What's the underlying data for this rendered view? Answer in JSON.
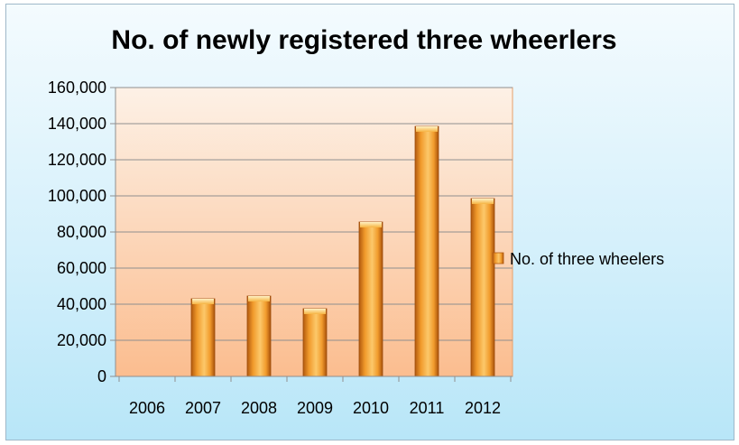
{
  "chart_data": {
    "type": "bar",
    "title": "No. of newly registered three wheerlers",
    "categories": [
      "2006",
      "2007",
      "2008",
      "2009",
      "2010",
      "2011",
      "2012"
    ],
    "series": [
      {
        "name": "No. of three wheelers",
        "values": [
          0,
          43000,
          44500,
          37500,
          85500,
          138500,
          98500
        ]
      }
    ],
    "ylim": [
      0,
      160000
    ],
    "yticks": [
      "0",
      "20,000",
      "40,000",
      "60,000",
      "80,000",
      "100,000",
      "120,000",
      "140,000",
      "160,000"
    ],
    "grid": true,
    "legend_position": "right",
    "colors": {
      "bar_light": "#fcc86a",
      "bar_mid": "#f19b2c",
      "bar_dark": "#b35a0e",
      "plot_top": "#fdeee2",
      "plot_bottom": "#fbbf93",
      "frame_background": "#c9ecfa"
    }
  }
}
